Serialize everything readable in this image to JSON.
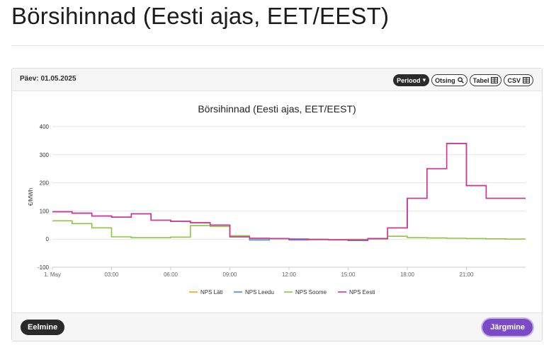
{
  "page": {
    "title": "Börsihinnad (Eesti ajas, EET/EEST)"
  },
  "panel": {
    "date_label": "Päev: 01.05.2025",
    "buttons": {
      "period": "Periood",
      "search": "Otsing",
      "table": "Tabel",
      "csv": "CSV"
    },
    "prev_label": "Eelmine",
    "next_label": "Järgmine"
  },
  "chart_data": {
    "type": "line",
    "step": true,
    "title": "Börsihinnad (Eesti ajas, EET/EEST)",
    "ylabel": "€/MWh",
    "xlabel": "",
    "ylim": [
      -100,
      400
    ],
    "y_ticks": [
      -100,
      0,
      100,
      200,
      300,
      400
    ],
    "x_ticks": [
      "1. May",
      "03:00",
      "06:00",
      "09:00",
      "12:00",
      "15:00",
      "18:00",
      "21:00"
    ],
    "x_tick_hours": [
      0,
      3,
      6,
      9,
      12,
      15,
      18,
      21
    ],
    "x_hours": [
      0,
      1,
      2,
      3,
      4,
      5,
      6,
      7,
      8,
      9,
      10,
      11,
      12,
      13,
      14,
      15,
      16,
      17,
      18,
      19,
      20,
      21,
      22,
      23
    ],
    "grid": true,
    "legend_position": "bottom",
    "series": [
      {
        "name": "NPS Läti",
        "color": "#f0a22a",
        "values": [
          97,
          92,
          82,
          78,
          90,
          67,
          63,
          58,
          50,
          8,
          3,
          2,
          0,
          -1,
          -2,
          -3,
          2,
          40,
          145,
          250,
          340,
          190,
          145,
          145
        ]
      },
      {
        "name": "NPS Leedu",
        "color": "#4a90e2",
        "values": [
          97,
          92,
          82,
          78,
          90,
          67,
          63,
          58,
          50,
          8,
          -3,
          2,
          -3,
          -2,
          -3,
          -5,
          2,
          40,
          145,
          250,
          340,
          190,
          145,
          145
        ]
      },
      {
        "name": "NPS Soome",
        "color": "#8dc63f",
        "values": [
          65,
          55,
          40,
          8,
          5,
          5,
          7,
          48,
          45,
          12,
          2,
          1,
          0,
          -2,
          -2,
          -1,
          0,
          10,
          5,
          4,
          3,
          2,
          1,
          0
        ]
      },
      {
        "name": "NPS Eesti",
        "color": "#d8319b",
        "values": [
          97,
          92,
          82,
          78,
          90,
          67,
          63,
          58,
          50,
          8,
          3,
          2,
          0,
          -1,
          -2,
          -3,
          2,
          40,
          145,
          250,
          340,
          190,
          145,
          145
        ]
      }
    ]
  }
}
